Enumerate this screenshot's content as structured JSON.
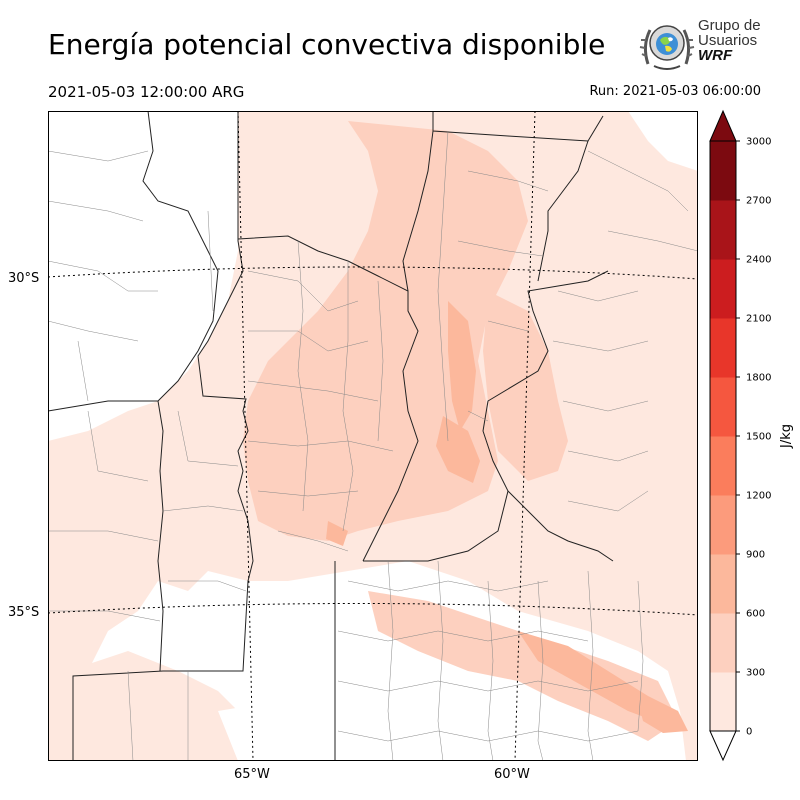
{
  "header": {
    "title": "Energía potencial convectiva disponible",
    "valid_time": "2021-05-03 12:00:00 ARG",
    "run_time": "Run: 2021-05-03 06:00:00"
  },
  "logo": {
    "line1": "Grupo de",
    "line2": "Usuarios",
    "line3": "WRF"
  },
  "map": {
    "lat_labels": [
      "30°S",
      "35°S"
    ],
    "lon_labels": [
      "65°W",
      "60°W"
    ]
  },
  "colorbar": {
    "unit": "J/kg",
    "ticks": [
      "0",
      "300",
      "600",
      "900",
      "1200",
      "1500",
      "1800",
      "2100",
      "2400",
      "2700",
      "3000"
    ],
    "colors": [
      "#fee8df",
      "#fdd0bf",
      "#fcb89c",
      "#fc9b7c",
      "#fb7d5c",
      "#f5573f",
      "#e8362a",
      "#cc1d1f",
      "#a91419",
      "#7c0a10"
    ]
  }
}
